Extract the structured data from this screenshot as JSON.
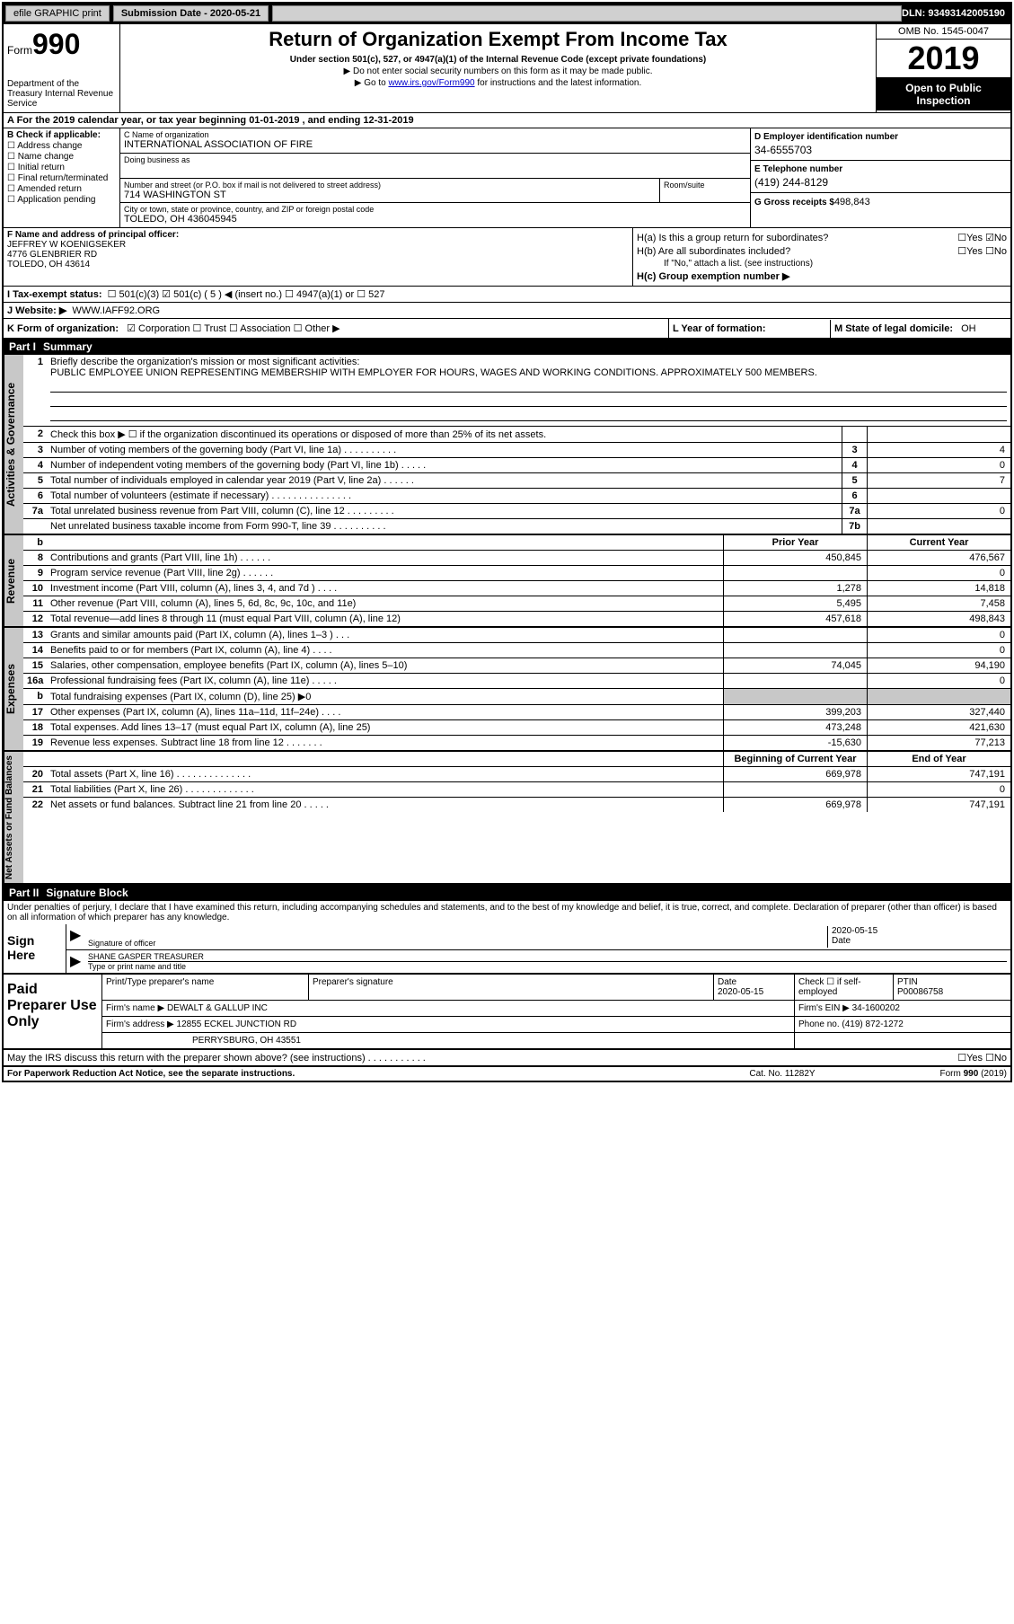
{
  "topbar": {
    "efile": "efile GRAPHIC print",
    "submission_label": "Submission Date - 2020-05-21",
    "dln": "DLN: 93493142005190"
  },
  "header": {
    "form_label": "Form",
    "form_number": "990",
    "dept": "Department of the Treasury Internal Revenue Service",
    "title": "Return of Organization Exempt From Income Tax",
    "subtitle": "Under section 501(c), 527, or 4947(a)(1) of the Internal Revenue Code (except private foundations)",
    "line1": "▶ Do not enter social security numbers on this form as it may be made public.",
    "line2_pre": "▶ Go to ",
    "line2_link": "www.irs.gov/Form990",
    "line2_post": " for instructions and the latest information.",
    "omb": "OMB No. 1545-0047",
    "year": "2019",
    "public": "Open to Public Inspection"
  },
  "period": "A For the 2019 calendar year, or tax year beginning 01-01-2019    , and ending 12-31-2019",
  "check_b": {
    "label": "B Check if applicable:",
    "items": [
      "☐ Address change",
      "☐ Name change",
      "☐ Initial return",
      "☐ Final return/terminated",
      "☐ Amended return",
      "☐ Application pending"
    ]
  },
  "org": {
    "name_label": "C Name of organization",
    "name": "INTERNATIONAL ASSOCIATION OF FIRE",
    "dba_label": "Doing business as",
    "addr_label": "Number and street (or P.O. box if mail is not delivered to street address)",
    "room_label": "Room/suite",
    "addr": "714 WASHINGTON ST",
    "city_label": "City or town, state or province, country, and ZIP or foreign postal code",
    "city": "TOLEDO, OH  436045945"
  },
  "de": {
    "ein_label": "D Employer identification number",
    "ein": "34-6555703",
    "phone_label": "E Telephone number",
    "phone": "(419) 244-8129",
    "gross_label": "G Gross receipts $",
    "gross": "498,843"
  },
  "f": {
    "label": "F  Name and address of principal officer:",
    "name": "JEFFREY W KOENIGSEKER",
    "addr1": "4776 GLENBRIER RD",
    "addr2": "TOLEDO, OH  43614"
  },
  "h": {
    "a_label": "H(a)  Is this a group return for subordinates?",
    "a_ans": "☐Yes ☑No",
    "b_label": "H(b)  Are all subordinates included?",
    "b_ans": "☐Yes ☐No",
    "b_note": "If \"No,\" attach a list. (see instructions)",
    "c_label": "H(c)  Group exemption number ▶"
  },
  "i": {
    "label": "I  Tax-exempt status:",
    "opts": "☐ 501(c)(3)   ☑ 501(c) ( 5 ) ◀ (insert no.)   ☐ 4947(a)(1) or  ☐ 527"
  },
  "j": {
    "label": "J  Website: ▶",
    "val": "WWW.IAFF92.ORG"
  },
  "k": {
    "label": "K Form of organization:",
    "opts": "☑ Corporation  ☐ Trust  ☐ Association  ☐ Other ▶"
  },
  "l": {
    "label": "L Year of formation:"
  },
  "m": {
    "label": "M State of legal domicile:",
    "val": "OH"
  },
  "part1": {
    "num": "Part I",
    "title": "Summary"
  },
  "briefly": {
    "num": "1",
    "label": "Briefly describe the organization's mission or most significant activities:",
    "text": "PUBLIC EMPLOYEE UNION REPRESENTING MEMBERSHIP WITH EMPLOYER FOR HOURS, WAGES AND WORKING CONDITIONS. APPROXIMATELY 500 MEMBERS."
  },
  "gov_rows": [
    {
      "n": "2",
      "d": "Check this box ▶ ☐ if the organization discontinued its operations or disposed of more than 25% of its net assets.",
      "box": "",
      "v": ""
    },
    {
      "n": "3",
      "d": "Number of voting members of the governing body (Part VI, line 1a)  .   .   .   .   .   .   .   .   .   .",
      "box": "3",
      "v": "4"
    },
    {
      "n": "4",
      "d": "Number of independent voting members of the governing body (Part VI, line 1b)  .   .   .   .   .",
      "box": "4",
      "v": "0"
    },
    {
      "n": "5",
      "d": "Total number of individuals employed in calendar year 2019 (Part V, line 2a)  .   .   .   .   .   .",
      "box": "5",
      "v": "7"
    },
    {
      "n": "6",
      "d": "Total number of volunteers (estimate if necessary)   .   .   .   .   .   .   .   .   .   .   .   .   .   .   .",
      "box": "6",
      "v": ""
    },
    {
      "n": "7a",
      "d": "Total unrelated business revenue from Part VIII, column (C), line 12  .   .   .   .   .   .   .   .   .",
      "box": "7a",
      "v": "0"
    },
    {
      "n": "",
      "d": "Net unrelated business taxable income from Form 990-T, line 39   .   .   .   .   .   .   .   .   .   .",
      "box": "7b",
      "v": ""
    }
  ],
  "rev_hdr": {
    "py": "Prior Year",
    "cy": "Current Year"
  },
  "rev_rows": [
    {
      "n": "8",
      "d": "Contributions and grants (Part VIII, line 1h)   .   .   .   .   .   .",
      "py": "450,845",
      "cy": "476,567"
    },
    {
      "n": "9",
      "d": "Program service revenue (Part VIII, line 2g)   .   .   .   .   .   .",
      "py": "",
      "cy": "0"
    },
    {
      "n": "10",
      "d": "Investment income (Part VIII, column (A), lines 3, 4, and 7d )  .   .   .   .",
      "py": "1,278",
      "cy": "14,818"
    },
    {
      "n": "11",
      "d": "Other revenue (Part VIII, column (A), lines 5, 6d, 8c, 9c, 10c, and 11e)",
      "py": "5,495",
      "cy": "7,458"
    },
    {
      "n": "12",
      "d": "Total revenue—add lines 8 through 11 (must equal Part VIII, column (A), line 12)",
      "py": "457,618",
      "cy": "498,843"
    }
  ],
  "exp_rows": [
    {
      "n": "13",
      "d": "Grants and similar amounts paid (Part IX, column (A), lines 1–3 )  .   .   .",
      "py": "",
      "cy": "0"
    },
    {
      "n": "14",
      "d": "Benefits paid to or for members (Part IX, column (A), line 4)   .   .   .   .",
      "py": "",
      "cy": "0"
    },
    {
      "n": "15",
      "d": "Salaries, other compensation, employee benefits (Part IX, column (A), lines 5–10)",
      "py": "74,045",
      "cy": "94,190"
    },
    {
      "n": "16a",
      "d": "Professional fundraising fees (Part IX, column (A), line 11e)  .   .   .   .   .",
      "py": "",
      "cy": "0"
    },
    {
      "n": "b",
      "d": "Total fundraising expenses (Part IX, column (D), line 25) ▶0",
      "py": "grey",
      "cy": "grey"
    },
    {
      "n": "17",
      "d": "Other expenses (Part IX, column (A), lines 11a–11d, 11f–24e)  .   .   .   .",
      "py": "399,203",
      "cy": "327,440"
    },
    {
      "n": "18",
      "d": "Total expenses. Add lines 13–17 (must equal Part IX, column (A), line 25)",
      "py": "473,248",
      "cy": "421,630"
    },
    {
      "n": "19",
      "d": "Revenue less expenses. Subtract line 18 from line 12  .   .   .   .   .   .   .",
      "py": "-15,630",
      "cy": "77,213"
    }
  ],
  "net_hdr": {
    "py": "Beginning of Current Year",
    "cy": "End of Year"
  },
  "net_rows": [
    {
      "n": "20",
      "d": "Total assets (Part X, line 16)  .   .   .   .   .   .   .   .   .   .   .   .   .   .",
      "py": "669,978",
      "cy": "747,191"
    },
    {
      "n": "21",
      "d": "Total liabilities (Part X, line 26)  .   .   .   .   .   .   .   .   .   .   .   .   .",
      "py": "",
      "cy": "0"
    },
    {
      "n": "22",
      "d": "Net assets or fund balances. Subtract line 21 from line 20  .   .   .   .   .",
      "py": "669,978",
      "cy": "747,191"
    }
  ],
  "part2": {
    "num": "Part II",
    "title": "Signature Block"
  },
  "sig": {
    "decl": "Under penalties of perjury, I declare that I have examined this return, including accompanying schedules and statements, and to the best of my knowledge and belief, it is true, correct, and complete. Declaration of preparer (other than officer) is based on all information of which preparer has any knowledge.",
    "here": "Sign Here",
    "sig_lbl": "Signature of officer",
    "date_lbl": "Date",
    "date": "2020-05-15",
    "name": "SHANE GASPER  TREASURER",
    "name_lbl": "Type or print name and title"
  },
  "paid": {
    "label": "Paid Preparer Use Only",
    "r1": {
      "c1": "Print/Type preparer's name",
      "c2": "Preparer's signature",
      "c3": "Date",
      "c3v": "2020-05-15",
      "c4": "Check ☐ if self-employed",
      "c5": "PTIN",
      "c5v": "P00086758"
    },
    "r2": {
      "c1": "Firm's name    ▶",
      "c1v": "DEWALT & GALLUP INC",
      "c2": "Firm's EIN ▶",
      "c2v": "34-1600202"
    },
    "r3": {
      "c1": "Firm's address ▶",
      "c1v": "12855 ECKEL JUNCTION RD",
      "c2": "Phone no.",
      "c2v": "(419) 872-1272"
    },
    "r4": {
      "c1": "",
      "c1v": "PERRYSBURG, OH  43551"
    }
  },
  "discuss": {
    "q": "May the IRS discuss this return with the preparer shown above? (see instructions)   .   .   .   .   .   .   .   .   .   .   .",
    "a": "☐Yes ☐No"
  },
  "footer": {
    "l": "For Paperwork Reduction Act Notice, see the separate instructions.",
    "m": "Cat. No. 11282Y",
    "r": "Form 990 (2019)"
  },
  "sides": {
    "gov": "Activities & Governance",
    "rev": "Revenue",
    "exp": "Expenses",
    "net": "Net Assets or Fund Balances"
  },
  "b_row": "b"
}
